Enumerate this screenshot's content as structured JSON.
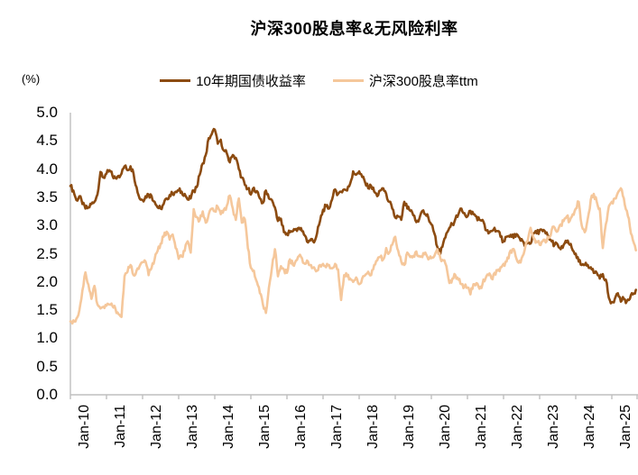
{
  "chart": {
    "title": "沪深300股息率&无风险利率",
    "unit_label": "(%)"
  },
  "chart_data": {
    "type": "line",
    "title": "沪深300股息率&无风险利率",
    "xlabel": "",
    "ylabel": "(%)",
    "ylim": [
      0.0,
      5.0
    ],
    "ytick_step": 0.5,
    "ytick_labels": [
      "5.0",
      "4.5",
      "4.0",
      "3.5",
      "3.0",
      "2.5",
      "2.0",
      "1.5",
      "1.0",
      "0.5",
      "0.0"
    ],
    "xtick_labels": [
      "Jan-10",
      "Jan-11",
      "Jan-12",
      "Jan-13",
      "Jan-14",
      "Jan-15",
      "Jan-16",
      "Jan-17",
      "Jan-18",
      "Jan-19",
      "Jan-20",
      "Jan-21",
      "Jan-22",
      "Jan-23",
      "Jan-24",
      "Jan-25"
    ],
    "x_start": "2010-01",
    "x_freq": "monthly",
    "grid": false,
    "legend_position": "top-center",
    "axis_color": "#BFBFBF",
    "series": [
      {
        "name": "10年期国债收益率",
        "color": "#8C4B10",
        "values": [
          3.7,
          3.62,
          3.45,
          3.52,
          3.38,
          3.3,
          3.32,
          3.38,
          3.42,
          3.55,
          3.95,
          3.85,
          3.92,
          3.98,
          3.88,
          3.84,
          3.88,
          3.92,
          4.05,
          3.98,
          4.05,
          3.92,
          3.68,
          3.48,
          3.45,
          3.52,
          3.55,
          3.52,
          3.42,
          3.32,
          3.3,
          3.38,
          3.48,
          3.54,
          3.56,
          3.6,
          3.62,
          3.6,
          3.56,
          3.46,
          3.48,
          3.62,
          3.68,
          3.9,
          4.1,
          4.25,
          4.55,
          4.62,
          4.7,
          4.45,
          4.52,
          4.33,
          4.28,
          4.12,
          4.25,
          4.2,
          4.0,
          3.85,
          3.72,
          3.65,
          3.55,
          3.67,
          3.61,
          3.48,
          3.4,
          3.62,
          3.48,
          3.45,
          3.32,
          3.08,
          3.12,
          2.88,
          2.86,
          2.88,
          2.9,
          2.94,
          2.96,
          2.9,
          2.82,
          2.7,
          2.76,
          2.7,
          2.86,
          3.08,
          3.28,
          3.34,
          3.3,
          3.46,
          3.64,
          3.56,
          3.6,
          3.64,
          3.62,
          3.74,
          3.96,
          3.9,
          3.96,
          3.86,
          3.76,
          3.66,
          3.7,
          3.6,
          3.52,
          3.62,
          3.66,
          3.56,
          3.42,
          3.3,
          3.14,
          3.16,
          3.1,
          3.42,
          3.3,
          3.26,
          3.18,
          3.06,
          3.12,
          3.26,
          3.2,
          3.14,
          3.02,
          2.86,
          2.62,
          2.5,
          2.7,
          2.86,
          2.96,
          3.02,
          3.12,
          3.2,
          3.3,
          3.22,
          3.16,
          3.26,
          3.2,
          3.16,
          3.1,
          3.1,
          2.92,
          2.86,
          2.9,
          2.96,
          2.9,
          2.8,
          2.72,
          2.8,
          2.8,
          2.84,
          2.8,
          2.8,
          2.76,
          2.64,
          2.7,
          2.68,
          2.86,
          2.86,
          2.92,
          2.9,
          2.86,
          2.8,
          2.72,
          2.66,
          2.66,
          2.58,
          2.66,
          2.7,
          2.66,
          2.56,
          2.5,
          2.36,
          2.3,
          2.3,
          2.3,
          2.26,
          2.16,
          2.16,
          2.06,
          2.14,
          2.04,
          1.72,
          1.64,
          1.7,
          1.8,
          1.65,
          1.7,
          1.66,
          1.7,
          1.78,
          1.86
        ]
      },
      {
        "name": "沪深300股息率ttm",
        "color": "#F5C79B",
        "values": [
          1.3,
          1.32,
          1.35,
          1.5,
          1.85,
          2.17,
          1.95,
          1.7,
          1.93,
          1.6,
          1.53,
          1.56,
          1.58,
          1.6,
          1.57,
          1.52,
          1.43,
          1.38,
          2.1,
          2.18,
          2.3,
          2.12,
          2.2,
          2.28,
          2.35,
          2.36,
          2.12,
          2.25,
          2.4,
          2.55,
          2.68,
          2.8,
          2.89,
          2.75,
          2.84,
          2.6,
          2.41,
          2.45,
          2.55,
          2.72,
          2.52,
          3.29,
          3.15,
          3.1,
          3.25,
          3.05,
          3.2,
          3.3,
          3.25,
          3.33,
          3.2,
          3.28,
          3.35,
          3.53,
          3.3,
          3.1,
          3.48,
          3.05,
          3.11,
          2.6,
          2.25,
          2.2,
          2.0,
          1.8,
          1.6,
          1.45,
          1.9,
          2.25,
          2.58,
          2.1,
          2.28,
          2.22,
          2.16,
          2.4,
          2.3,
          2.38,
          2.46,
          2.42,
          2.32,
          2.36,
          2.3,
          2.26,
          2.2,
          2.3,
          2.32,
          2.26,
          2.3,
          2.24,
          2.32,
          2.22,
          1.68,
          2.12,
          2.1,
          2.06,
          2.0,
          2.08,
          1.96,
          2.06,
          2.12,
          2.18,
          2.12,
          2.3,
          2.38,
          2.44,
          2.4,
          2.6,
          2.52,
          2.66,
          2.8,
          2.55,
          2.36,
          2.3,
          2.52,
          2.44,
          2.46,
          2.54,
          2.46,
          2.44,
          2.52,
          2.4,
          2.42,
          2.46,
          2.58,
          2.42,
          2.38,
          2.28,
          1.98,
          2.06,
          2.12,
          2.04,
          1.96,
          1.92,
          1.9,
          1.78,
          1.96,
          1.98,
          1.88,
          1.96,
          2.06,
          2.12,
          2.06,
          2.16,
          2.2,
          2.26,
          2.32,
          2.36,
          2.52,
          2.58,
          2.46,
          2.34,
          2.42,
          2.56,
          2.72,
          2.96,
          2.78,
          2.72,
          2.66,
          2.72,
          2.7,
          2.78,
          2.92,
          2.96,
          2.9,
          3.02,
          3.08,
          3.16,
          3.08,
          3.2,
          3.3,
          3.42,
          3.0,
          2.88,
          3.12,
          3.46,
          3.56,
          3.42,
          3.3,
          2.6,
          3.02,
          3.34,
          3.42,
          3.48,
          3.58,
          3.66,
          3.48,
          3.26,
          2.98,
          2.74,
          2.56
        ]
      }
    ]
  }
}
